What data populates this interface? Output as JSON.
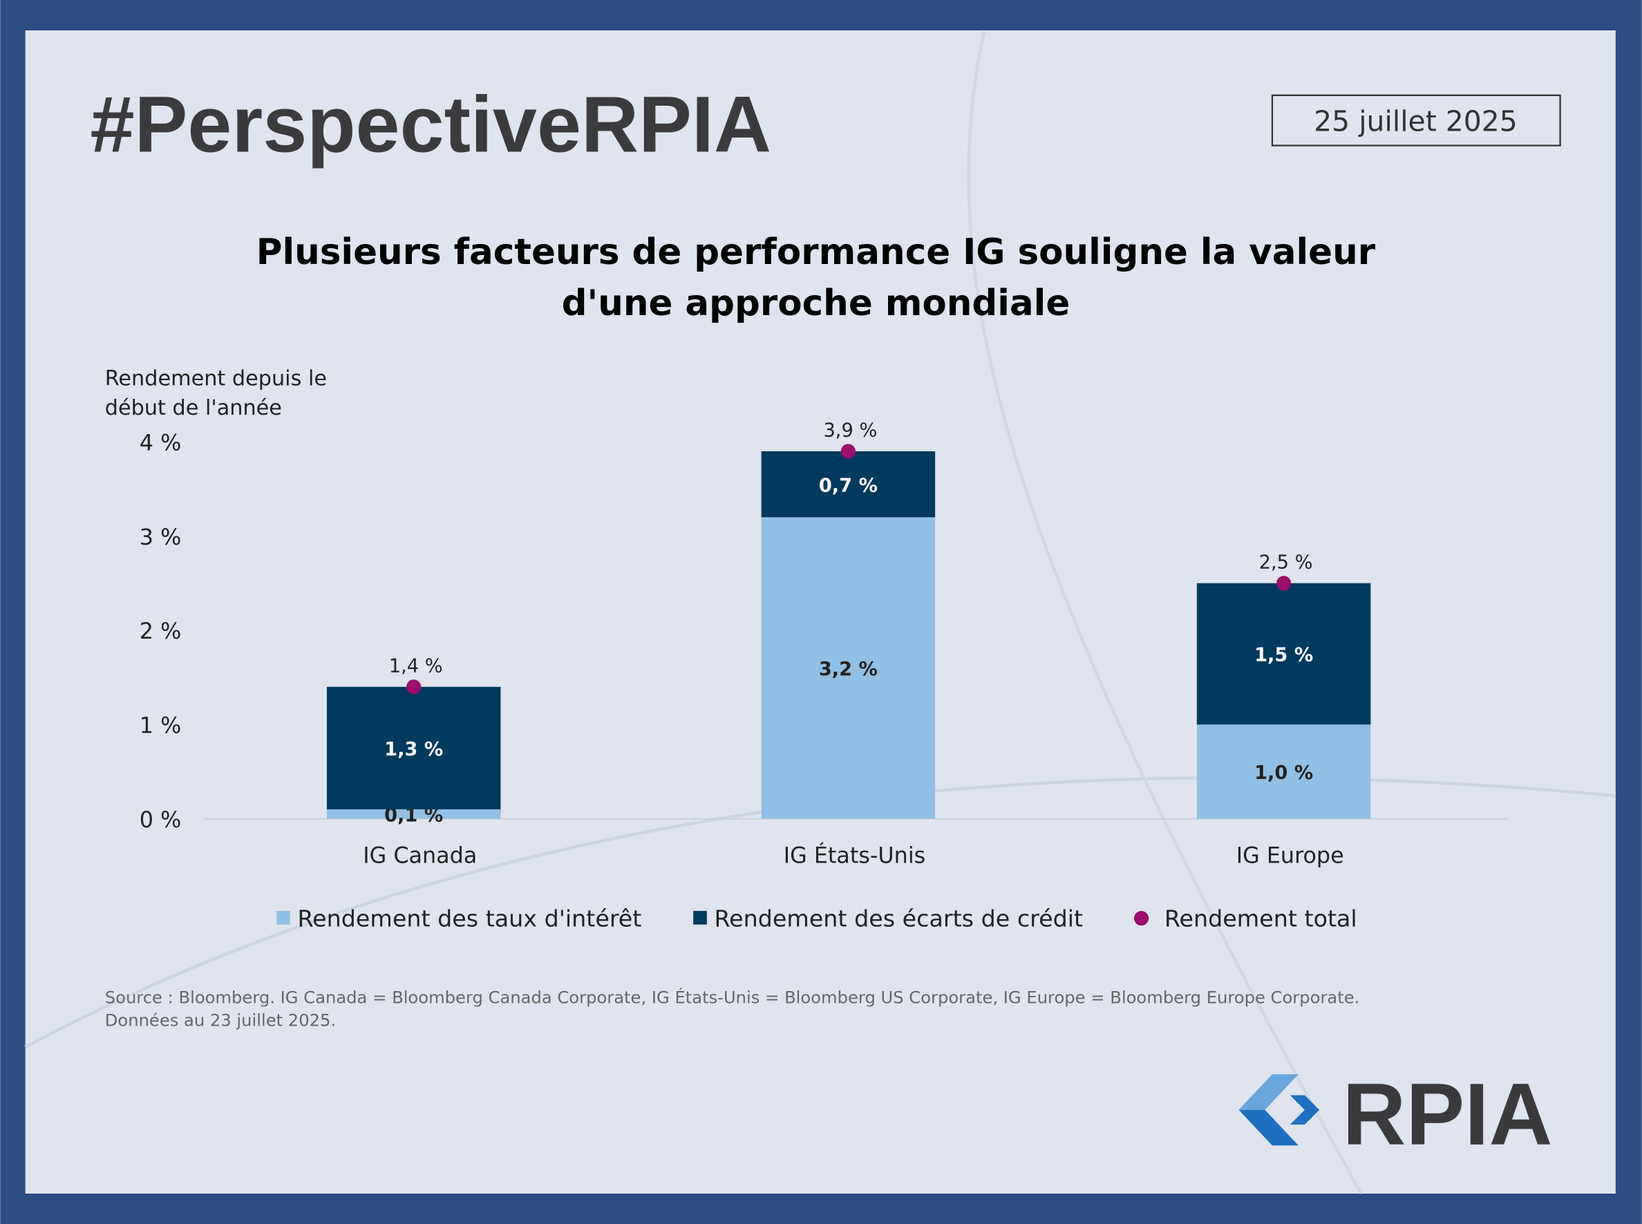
{
  "header": {
    "title": "#PerspectiveRPIA",
    "date": "25 juillet 2025"
  },
  "chart_data": {
    "type": "stacked_bar",
    "title": [
      "Plusieurs facteurs de performance IG souligne la valeur",
      "d'une approche mondiale"
    ],
    "ylabel": [
      "Rendement depuis le",
      "début de l'année"
    ],
    "categories": [
      "IG Canada",
      "IG États-Unis",
      "IG Europe"
    ],
    "series": [
      {
        "name": "Rendement des taux d'intérêt",
        "color": "#92c0e4",
        "values": [
          0.1,
          3.2,
          1.0
        ],
        "value_labels": [
          "0,1 %",
          "3,2 %",
          "1,0 %"
        ],
        "label_color": "#222222"
      },
      {
        "name": "Rendement des écarts de crédit",
        "color": "#003a5d",
        "values": [
          1.3,
          0.7,
          1.5
        ],
        "value_labels": [
          "1,3 %",
          "0,7 %",
          "1,5 %"
        ],
        "label_color": "#ffffff"
      }
    ],
    "total": {
      "name": "Rendement total",
      "color": "#9b0e6b",
      "values": [
        1.4,
        3.9,
        2.5
      ],
      "value_labels": [
        "1,4 %",
        "3,9 %",
        "2,5 %"
      ]
    },
    "ylim": [
      0,
      4
    ],
    "yticks": [
      {
        "value": 0,
        "label": "0 %"
      },
      {
        "value": 1,
        "label": "1 %"
      },
      {
        "value": 2,
        "label": "2 %"
      },
      {
        "value": 3,
        "label": "3 %"
      },
      {
        "value": 4,
        "label": "4 %"
      }
    ]
  },
  "source": [
    "Source : Bloomberg. IG Canada = Bloomberg Canada Corporate, IG États-Unis = Bloomberg US Corporate, IG Europe = Bloomberg Europe Corporate.",
    "Données au 23 juillet 2025."
  ],
  "logo": "RPIA"
}
